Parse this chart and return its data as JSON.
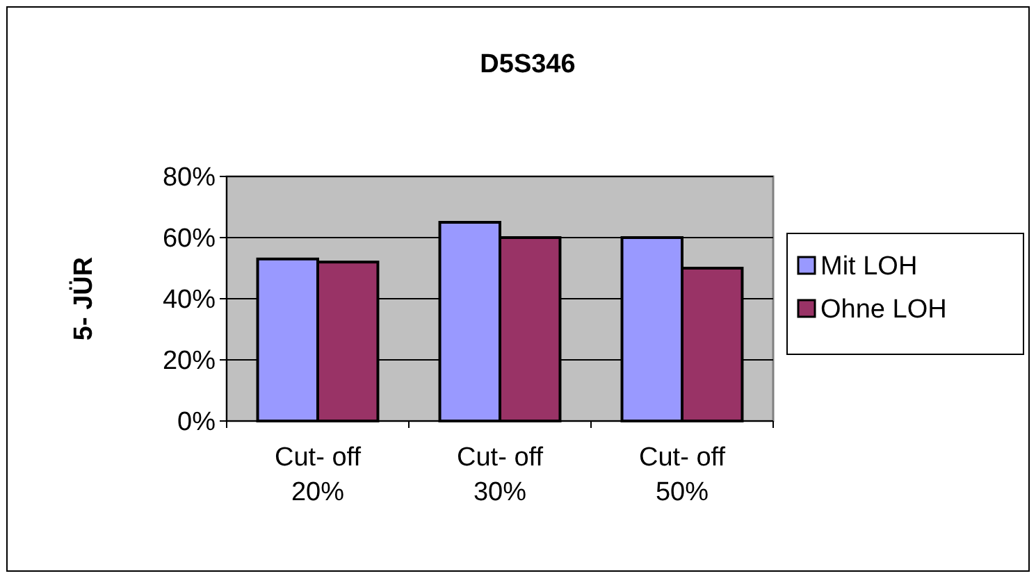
{
  "chart_data": {
    "type": "bar",
    "title": "D5S346",
    "ylabel": "5- JÜR",
    "categories": [
      "Cut- off\n20%",
      "Cut- off\n30%",
      "Cut- off\n50%"
    ],
    "series": [
      {
        "name": "Mit LOH",
        "color": "#9999ff",
        "values": [
          53,
          65,
          60
        ]
      },
      {
        "name": "Ohne LOH",
        "color": "#993366",
        "values": [
          52,
          60,
          50
        ]
      }
    ],
    "ylim": [
      0,
      80
    ],
    "yticks": [
      {
        "value": 0,
        "label": "0%"
      },
      {
        "value": 20,
        "label": "20%"
      },
      {
        "value": 40,
        "label": "40%"
      },
      {
        "value": 60,
        "label": "60%"
      },
      {
        "value": 80,
        "label": "80%"
      }
    ],
    "grid": "y",
    "legend": "right"
  }
}
